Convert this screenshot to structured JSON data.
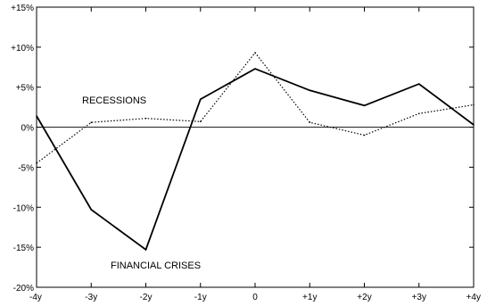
{
  "chart_data": {
    "type": "line",
    "title": "",
    "xlabel": "",
    "ylabel": "",
    "categories": [
      "-4y",
      "-3y",
      "-2y",
      "-1y",
      "0",
      "+1y",
      "+2y",
      "+3y",
      "+4y"
    ],
    "y_tick_labels": [
      "+15%",
      "+10%",
      "+5%",
      "0%",
      "-5%",
      "-10%",
      "-15%",
      "-20%"
    ],
    "y_ticks": [
      15,
      10,
      5,
      0,
      -5,
      -10,
      -15,
      -20
    ],
    "ylim": [
      -20,
      15
    ],
    "grid": false,
    "zero_line": true,
    "series": [
      {
        "name": "FINANCIAL CRISES",
        "style": "solid",
        "color": "#000000",
        "values": [
          1.4,
          -10.3,
          -15.3,
          3.5,
          7.3,
          4.6,
          2.7,
          5.4,
          0.3
        ]
      },
      {
        "name": "RECESSIONS",
        "style": "dotted",
        "color": "#000000",
        "values": [
          -4.5,
          0.6,
          1.1,
          0.7,
          9.3,
          0.6,
          -1.0,
          1.7,
          2.8
        ]
      }
    ]
  }
}
